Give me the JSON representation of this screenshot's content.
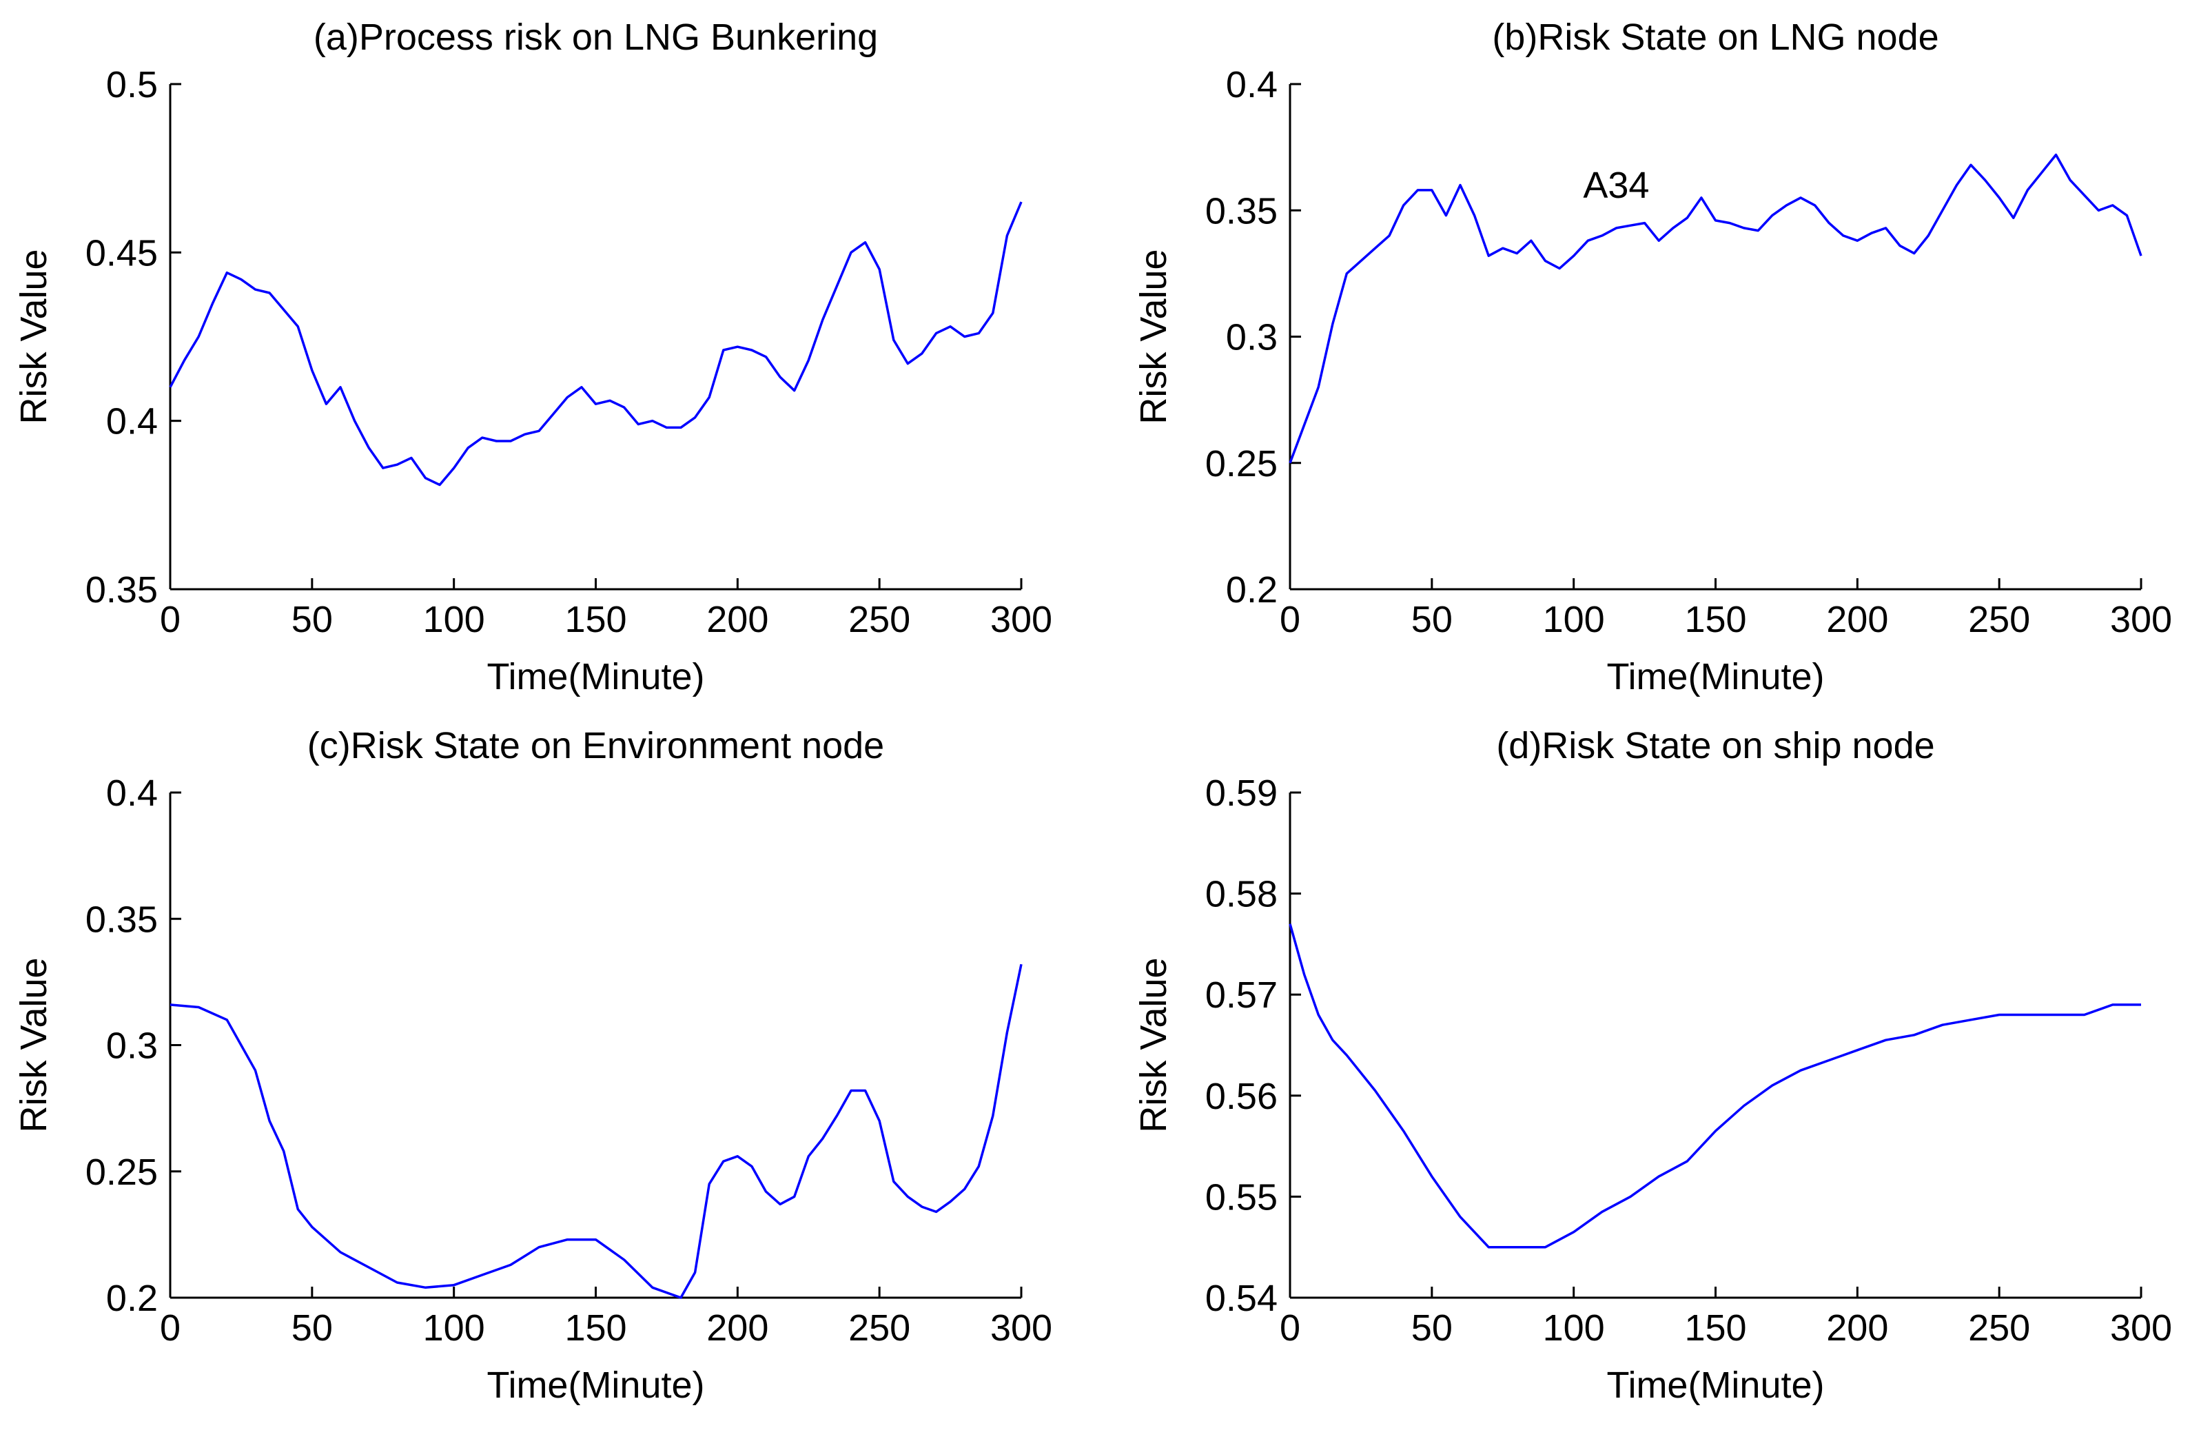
{
  "colors": {
    "line": "#0000ff",
    "axis": "#000000",
    "background": "#ffffff"
  },
  "chart_data": [
    {
      "type": "line",
      "title": "(a)Process risk on LNG Bunkering",
      "xlabel": "Time(Minute)",
      "ylabel": "Risk Value",
      "xlim": [
        0,
        300
      ],
      "ylim": [
        0.35,
        0.5
      ],
      "xticks": [
        0,
        50,
        100,
        150,
        200,
        250,
        300
      ],
      "xtick_labels": [
        "0",
        "50",
        "100",
        "150",
        "200",
        "250",
        "300"
      ],
      "yticks": [
        0.35,
        0.4,
        0.45,
        0.5
      ],
      "ytick_labels": [
        "0.35",
        "0.4",
        "0.45",
        "0.5"
      ],
      "grid": false,
      "annotations": [],
      "series": [
        {
          "name": "Process risk",
          "x": [
            0,
            5,
            10,
            15,
            20,
            25,
            30,
            35,
            40,
            45,
            50,
            55,
            60,
            65,
            70,
            75,
            80,
            85,
            90,
            95,
            100,
            105,
            110,
            115,
            120,
            125,
            130,
            135,
            140,
            145,
            150,
            155,
            160,
            165,
            170,
            175,
            180,
            185,
            190,
            195,
            200,
            205,
            210,
            215,
            220,
            225,
            230,
            235,
            240,
            245,
            250,
            255,
            260,
            265,
            270,
            275,
            280,
            285,
            290,
            295,
            300
          ],
          "y": [
            0.41,
            0.418,
            0.425,
            0.435,
            0.444,
            0.442,
            0.439,
            0.438,
            0.433,
            0.428,
            0.415,
            0.405,
            0.41,
            0.4,
            0.392,
            0.386,
            0.387,
            0.389,
            0.383,
            0.381,
            0.386,
            0.392,
            0.395,
            0.394,
            0.394,
            0.396,
            0.397,
            0.402,
            0.407,
            0.41,
            0.405,
            0.406,
            0.404,
            0.399,
            0.4,
            0.398,
            0.398,
            0.401,
            0.407,
            0.421,
            0.422,
            0.421,
            0.419,
            0.413,
            0.409,
            0.418,
            0.43,
            0.44,
            0.45,
            0.453,
            0.445,
            0.424,
            0.417,
            0.42,
            0.426,
            0.428,
            0.425,
            0.426,
            0.432,
            0.455,
            0.465
          ]
        }
      ]
    },
    {
      "type": "line",
      "title": "(b)Risk State on LNG node",
      "xlabel": "Time(Minute)",
      "ylabel": "Risk Value",
      "xlim": [
        0,
        300
      ],
      "ylim": [
        0.2,
        0.4
      ],
      "xticks": [
        0,
        50,
        100,
        150,
        200,
        250,
        300
      ],
      "xtick_labels": [
        "0",
        "50",
        "100",
        "150",
        "200",
        "250",
        "300"
      ],
      "yticks": [
        0.2,
        0.25,
        0.3,
        0.35,
        0.4
      ],
      "ytick_labels": [
        "0.2",
        "0.25",
        "0.3",
        "0.35",
        "0.4"
      ],
      "grid": false,
      "annotations": [
        {
          "text": "A34",
          "x": 115,
          "y": 0.355
        }
      ],
      "series": [
        {
          "name": "LNG node",
          "x": [
            0,
            5,
            10,
            15,
            20,
            25,
            30,
            35,
            40,
            45,
            50,
            55,
            60,
            65,
            70,
            75,
            80,
            85,
            90,
            95,
            100,
            105,
            110,
            115,
            120,
            125,
            130,
            135,
            140,
            145,
            150,
            155,
            160,
            165,
            170,
            175,
            180,
            185,
            190,
            195,
            200,
            205,
            210,
            215,
            220,
            225,
            230,
            235,
            240,
            245,
            250,
            255,
            260,
            265,
            270,
            275,
            280,
            285,
            290,
            295,
            300
          ],
          "y": [
            0.25,
            0.265,
            0.28,
            0.305,
            0.325,
            0.33,
            0.335,
            0.34,
            0.352,
            0.358,
            0.358,
            0.348,
            0.36,
            0.348,
            0.332,
            0.335,
            0.333,
            0.338,
            0.33,
            0.327,
            0.332,
            0.338,
            0.34,
            0.343,
            0.344,
            0.345,
            0.338,
            0.343,
            0.347,
            0.355,
            0.346,
            0.345,
            0.343,
            0.342,
            0.348,
            0.352,
            0.355,
            0.352,
            0.345,
            0.34,
            0.338,
            0.341,
            0.343,
            0.336,
            0.333,
            0.34,
            0.35,
            0.36,
            0.368,
            0.362,
            0.355,
            0.347,
            0.358,
            0.365,
            0.372,
            0.362,
            0.356,
            0.35,
            0.352,
            0.348,
            0.332
          ]
        }
      ]
    },
    {
      "type": "line",
      "title": "(c)Risk State on Environment node",
      "xlabel": "Time(Minute)",
      "ylabel": "Risk Value",
      "xlim": [
        0,
        300
      ],
      "ylim": [
        0.2,
        0.4
      ],
      "xticks": [
        0,
        50,
        100,
        150,
        200,
        250,
        300
      ],
      "xtick_labels": [
        "0",
        "50",
        "100",
        "150",
        "200",
        "250",
        "300"
      ],
      "yticks": [
        0.2,
        0.25,
        0.3,
        0.35,
        0.4
      ],
      "ytick_labels": [
        "0.2",
        "0.25",
        "0.3",
        "0.35",
        "0.4"
      ],
      "grid": false,
      "annotations": [],
      "series": [
        {
          "name": "Environment node",
          "x": [
            0,
            10,
            20,
            25,
            30,
            35,
            40,
            45,
            50,
            60,
            70,
            80,
            90,
            100,
            110,
            120,
            130,
            140,
            150,
            160,
            170,
            180,
            185,
            190,
            195,
            200,
            205,
            210,
            215,
            220,
            225,
            230,
            235,
            240,
            245,
            250,
            255,
            260,
            265,
            270,
            275,
            280,
            285,
            290,
            295,
            300
          ],
          "y": [
            0.316,
            0.315,
            0.31,
            0.3,
            0.29,
            0.27,
            0.258,
            0.235,
            0.228,
            0.218,
            0.212,
            0.206,
            0.204,
            0.205,
            0.209,
            0.213,
            0.22,
            0.223,
            0.223,
            0.215,
            0.204,
            0.2,
            0.21,
            0.245,
            0.254,
            0.256,
            0.252,
            0.242,
            0.237,
            0.24,
            0.256,
            0.263,
            0.272,
            0.282,
            0.282,
            0.27,
            0.246,
            0.24,
            0.236,
            0.234,
            0.238,
            0.243,
            0.252,
            0.272,
            0.305,
            0.332
          ]
        }
      ]
    },
    {
      "type": "line",
      "title": "(d)Risk State on ship node",
      "xlabel": "Time(Minute)",
      "ylabel": "Risk Value",
      "xlim": [
        0,
        300
      ],
      "ylim": [
        0.54,
        0.59
      ],
      "xticks": [
        0,
        50,
        100,
        150,
        200,
        250,
        300
      ],
      "xtick_labels": [
        "0",
        "50",
        "100",
        "150",
        "200",
        "250",
        "300"
      ],
      "yticks": [
        0.54,
        0.55,
        0.56,
        0.57,
        0.58,
        0.59
      ],
      "ytick_labels": [
        "0.54",
        "0.55",
        "0.56",
        "0.57",
        "0.58",
        "0.59"
      ],
      "grid": false,
      "annotations": [],
      "series": [
        {
          "name": "Ship node",
          "x": [
            0,
            5,
            10,
            15,
            20,
            30,
            40,
            50,
            60,
            70,
            80,
            90,
            100,
            110,
            120,
            130,
            140,
            150,
            160,
            170,
            180,
            190,
            200,
            210,
            220,
            230,
            240,
            250,
            260,
            270,
            280,
            290,
            300
          ],
          "y": [
            0.577,
            0.572,
            0.568,
            0.5655,
            0.564,
            0.5605,
            0.5565,
            0.552,
            0.548,
            0.545,
            0.545,
            0.545,
            0.5465,
            0.5485,
            0.55,
            0.552,
            0.5535,
            0.5565,
            0.559,
            0.561,
            0.5625,
            0.5635,
            0.5645,
            0.5655,
            0.566,
            0.567,
            0.5675,
            0.568,
            0.568,
            0.568,
            0.568,
            0.569,
            0.569
          ]
        }
      ]
    }
  ]
}
